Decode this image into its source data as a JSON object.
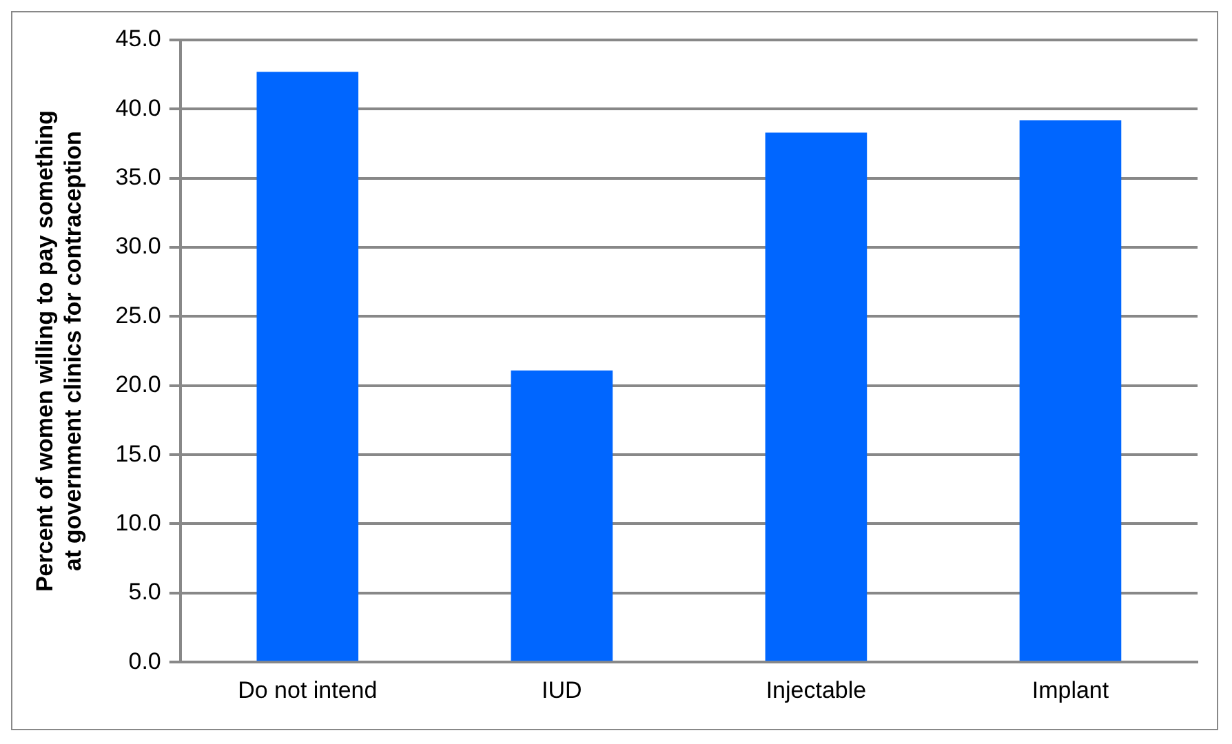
{
  "chart_data": {
    "type": "bar",
    "ylabel": "Percent of women willing to pay something\nat government clinics for contraception",
    "categories": [
      "Do not intend",
      "IUD",
      "Injectable",
      "Implant"
    ],
    "values": [
      42.7,
      21.1,
      38.3,
      39.2
    ],
    "color": "#0066ff",
    "ylim": [
      0,
      45
    ],
    "yticks": [
      {
        "value": 0,
        "label": "0.0"
      },
      {
        "value": 5,
        "label": "5.0"
      },
      {
        "value": 10,
        "label": "10.0"
      },
      {
        "value": 15,
        "label": "15.0"
      },
      {
        "value": 20,
        "label": "20.0"
      },
      {
        "value": 25,
        "label": "25.0"
      },
      {
        "value": 30,
        "label": "30.0"
      },
      {
        "value": 35,
        "label": "35.0"
      },
      {
        "value": 40,
        "label": "40.0"
      },
      {
        "value": 45,
        "label": "45.0"
      }
    ],
    "grid": "y",
    "legend": false
  }
}
